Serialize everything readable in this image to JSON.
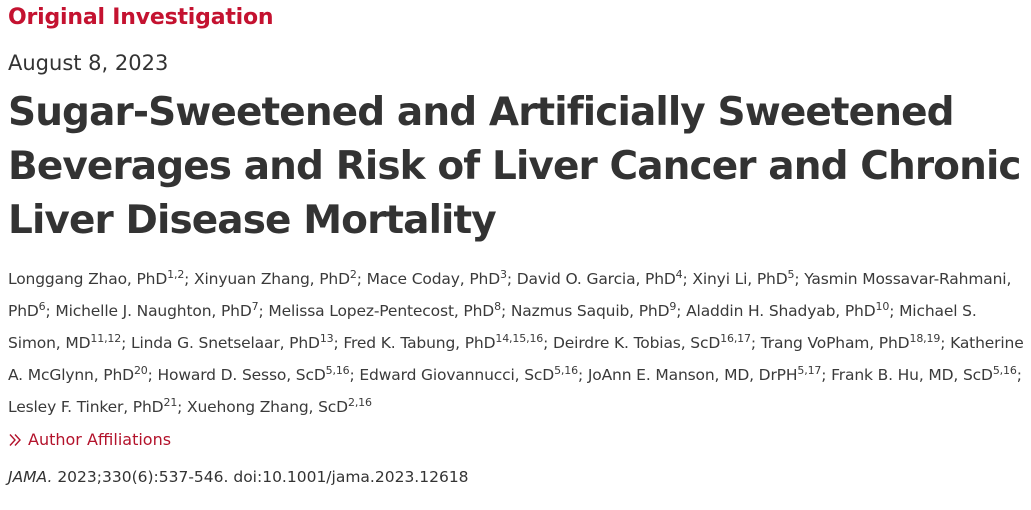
{
  "article_type": "Original Investigation",
  "date": "August 8, 2023",
  "title": "Sugar-Sweetened and Artificially Sweetened Beverages and Risk of Liver Cancer and Chronic Liver Disease Mortality",
  "authors": [
    {
      "name": "Longgang Zhao, PhD",
      "aff": "1,2"
    },
    {
      "name": "Xinyuan Zhang, PhD",
      "aff": "2"
    },
    {
      "name": "Mace Coday, PhD",
      "aff": "3"
    },
    {
      "name": "David O. Garcia, PhD",
      "aff": "4"
    },
    {
      "name": "Xinyi Li, PhD",
      "aff": "5"
    },
    {
      "name": "Yasmin Mossavar-Rahmani, PhD",
      "aff": "6"
    },
    {
      "name": "Michelle J. Naughton, PhD",
      "aff": "7"
    },
    {
      "name": "Melissa Lopez-Pentecost, PhD",
      "aff": "8"
    },
    {
      "name": "Nazmus Saquib, PhD",
      "aff": "9"
    },
    {
      "name": "Aladdin H. Shadyab, PhD",
      "aff": "10"
    },
    {
      "name": "Michael S. Simon, MD",
      "aff": "11,12"
    },
    {
      "name": "Linda G. Snetselaar, PhD",
      "aff": "13"
    },
    {
      "name": "Fred K. Tabung, PhD",
      "aff": "14,15,16"
    },
    {
      "name": "Deirdre K. Tobias, ScD",
      "aff": "16,17"
    },
    {
      "name": "Trang VoPham, PhD",
      "aff": "18,19"
    },
    {
      "name": "Katherine A. McGlynn, PhD",
      "aff": "20"
    },
    {
      "name": "Howard D. Sesso, ScD",
      "aff": "5,16"
    },
    {
      "name": "Edward Giovannucci, ScD",
      "aff": "5,16"
    },
    {
      "name": "JoAnn E. Manson, MD, DrPH",
      "aff": "5,17"
    },
    {
      "name": "Frank B. Hu, MD, ScD",
      "aff": "5,16"
    },
    {
      "name": "Lesley F. Tinker, PhD",
      "aff": "21"
    },
    {
      "name": "Xuehong Zhang, ScD",
      "aff": "2,16"
    }
  ],
  "author_affiliations_link": "Author Affiliations",
  "citation": {
    "journal": "JAMA.",
    "reference": "2023;330(6):537-546. doi:10.1001/jama.2023.12618"
  },
  "colors": {
    "accent": "#c41230",
    "text": "#333333"
  },
  "icons": {
    "affiliations": "double-chevron-right-icon"
  }
}
